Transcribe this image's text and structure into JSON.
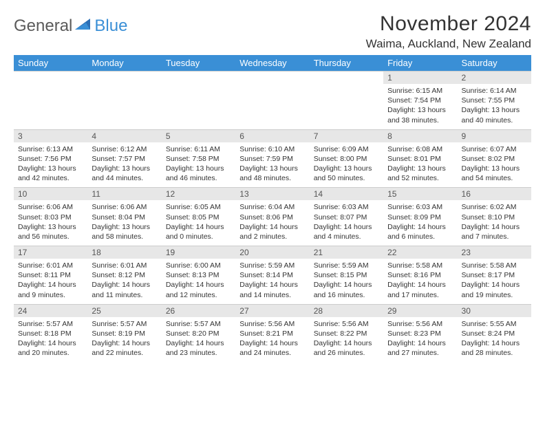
{
  "logo": {
    "general": "General",
    "blue": "Blue"
  },
  "title": "November 2024",
  "location": "Waima, Auckland, New Zealand",
  "colors": {
    "header_bg": "#3a8fd6",
    "header_text": "#ffffff",
    "daynum_bg": "#e7e7e7",
    "text": "#333333",
    "grid": "#cccccc",
    "page_bg": "#ffffff"
  },
  "typography": {
    "title_fontsize_pt": 22,
    "location_fontsize_pt": 13,
    "weekday_fontsize_pt": 10,
    "cell_fontsize_pt": 8
  },
  "weekdays": [
    "Sunday",
    "Monday",
    "Tuesday",
    "Wednesday",
    "Thursday",
    "Friday",
    "Saturday"
  ],
  "weeks": [
    [
      {
        "n": "",
        "sr": "",
        "ss": "",
        "dl": ""
      },
      {
        "n": "",
        "sr": "",
        "ss": "",
        "dl": ""
      },
      {
        "n": "",
        "sr": "",
        "ss": "",
        "dl": ""
      },
      {
        "n": "",
        "sr": "",
        "ss": "",
        "dl": ""
      },
      {
        "n": "",
        "sr": "",
        "ss": "",
        "dl": ""
      },
      {
        "n": "1",
        "sr": "Sunrise: 6:15 AM",
        "ss": "Sunset: 7:54 PM",
        "dl": "Daylight: 13 hours and 38 minutes."
      },
      {
        "n": "2",
        "sr": "Sunrise: 6:14 AM",
        "ss": "Sunset: 7:55 PM",
        "dl": "Daylight: 13 hours and 40 minutes."
      }
    ],
    [
      {
        "n": "3",
        "sr": "Sunrise: 6:13 AM",
        "ss": "Sunset: 7:56 PM",
        "dl": "Daylight: 13 hours and 42 minutes."
      },
      {
        "n": "4",
        "sr": "Sunrise: 6:12 AM",
        "ss": "Sunset: 7:57 PM",
        "dl": "Daylight: 13 hours and 44 minutes."
      },
      {
        "n": "5",
        "sr": "Sunrise: 6:11 AM",
        "ss": "Sunset: 7:58 PM",
        "dl": "Daylight: 13 hours and 46 minutes."
      },
      {
        "n": "6",
        "sr": "Sunrise: 6:10 AM",
        "ss": "Sunset: 7:59 PM",
        "dl": "Daylight: 13 hours and 48 minutes."
      },
      {
        "n": "7",
        "sr": "Sunrise: 6:09 AM",
        "ss": "Sunset: 8:00 PM",
        "dl": "Daylight: 13 hours and 50 minutes."
      },
      {
        "n": "8",
        "sr": "Sunrise: 6:08 AM",
        "ss": "Sunset: 8:01 PM",
        "dl": "Daylight: 13 hours and 52 minutes."
      },
      {
        "n": "9",
        "sr": "Sunrise: 6:07 AM",
        "ss": "Sunset: 8:02 PM",
        "dl": "Daylight: 13 hours and 54 minutes."
      }
    ],
    [
      {
        "n": "10",
        "sr": "Sunrise: 6:06 AM",
        "ss": "Sunset: 8:03 PM",
        "dl": "Daylight: 13 hours and 56 minutes."
      },
      {
        "n": "11",
        "sr": "Sunrise: 6:06 AM",
        "ss": "Sunset: 8:04 PM",
        "dl": "Daylight: 13 hours and 58 minutes."
      },
      {
        "n": "12",
        "sr": "Sunrise: 6:05 AM",
        "ss": "Sunset: 8:05 PM",
        "dl": "Daylight: 14 hours and 0 minutes."
      },
      {
        "n": "13",
        "sr": "Sunrise: 6:04 AM",
        "ss": "Sunset: 8:06 PM",
        "dl": "Daylight: 14 hours and 2 minutes."
      },
      {
        "n": "14",
        "sr": "Sunrise: 6:03 AM",
        "ss": "Sunset: 8:07 PM",
        "dl": "Daylight: 14 hours and 4 minutes."
      },
      {
        "n": "15",
        "sr": "Sunrise: 6:03 AM",
        "ss": "Sunset: 8:09 PM",
        "dl": "Daylight: 14 hours and 6 minutes."
      },
      {
        "n": "16",
        "sr": "Sunrise: 6:02 AM",
        "ss": "Sunset: 8:10 PM",
        "dl": "Daylight: 14 hours and 7 minutes."
      }
    ],
    [
      {
        "n": "17",
        "sr": "Sunrise: 6:01 AM",
        "ss": "Sunset: 8:11 PM",
        "dl": "Daylight: 14 hours and 9 minutes."
      },
      {
        "n": "18",
        "sr": "Sunrise: 6:01 AM",
        "ss": "Sunset: 8:12 PM",
        "dl": "Daylight: 14 hours and 11 minutes."
      },
      {
        "n": "19",
        "sr": "Sunrise: 6:00 AM",
        "ss": "Sunset: 8:13 PM",
        "dl": "Daylight: 14 hours and 12 minutes."
      },
      {
        "n": "20",
        "sr": "Sunrise: 5:59 AM",
        "ss": "Sunset: 8:14 PM",
        "dl": "Daylight: 14 hours and 14 minutes."
      },
      {
        "n": "21",
        "sr": "Sunrise: 5:59 AM",
        "ss": "Sunset: 8:15 PM",
        "dl": "Daylight: 14 hours and 16 minutes."
      },
      {
        "n": "22",
        "sr": "Sunrise: 5:58 AM",
        "ss": "Sunset: 8:16 PM",
        "dl": "Daylight: 14 hours and 17 minutes."
      },
      {
        "n": "23",
        "sr": "Sunrise: 5:58 AM",
        "ss": "Sunset: 8:17 PM",
        "dl": "Daylight: 14 hours and 19 minutes."
      }
    ],
    [
      {
        "n": "24",
        "sr": "Sunrise: 5:57 AM",
        "ss": "Sunset: 8:18 PM",
        "dl": "Daylight: 14 hours and 20 minutes."
      },
      {
        "n": "25",
        "sr": "Sunrise: 5:57 AM",
        "ss": "Sunset: 8:19 PM",
        "dl": "Daylight: 14 hours and 22 minutes."
      },
      {
        "n": "26",
        "sr": "Sunrise: 5:57 AM",
        "ss": "Sunset: 8:20 PM",
        "dl": "Daylight: 14 hours and 23 minutes."
      },
      {
        "n": "27",
        "sr": "Sunrise: 5:56 AM",
        "ss": "Sunset: 8:21 PM",
        "dl": "Daylight: 14 hours and 24 minutes."
      },
      {
        "n": "28",
        "sr": "Sunrise: 5:56 AM",
        "ss": "Sunset: 8:22 PM",
        "dl": "Daylight: 14 hours and 26 minutes."
      },
      {
        "n": "29",
        "sr": "Sunrise: 5:56 AM",
        "ss": "Sunset: 8:23 PM",
        "dl": "Daylight: 14 hours and 27 minutes."
      },
      {
        "n": "30",
        "sr": "Sunrise: 5:55 AM",
        "ss": "Sunset: 8:24 PM",
        "dl": "Daylight: 14 hours and 28 minutes."
      }
    ]
  ]
}
